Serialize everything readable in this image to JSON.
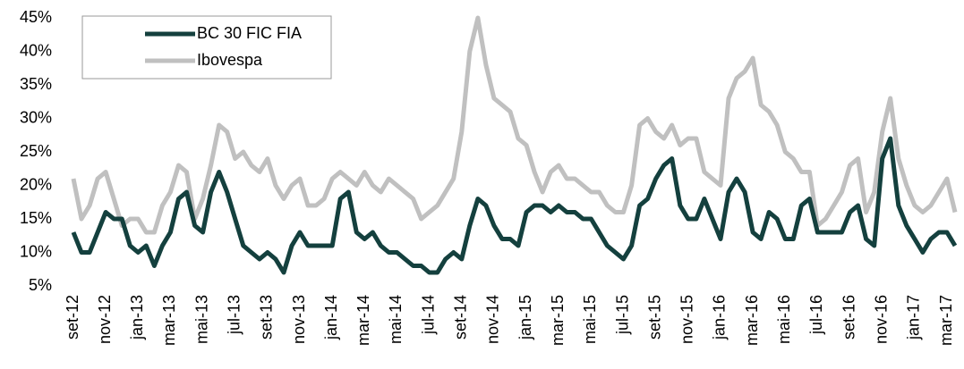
{
  "chart_data": {
    "type": "line",
    "categories": [
      "set-12",
      null,
      null,
      null,
      "nov-12",
      null,
      null,
      null,
      "jan-13",
      null,
      null,
      null,
      "mar-13",
      null,
      null,
      null,
      "mai-13",
      null,
      null,
      null,
      "jul-13",
      null,
      null,
      null,
      "set-13",
      null,
      null,
      null,
      "nov-13",
      null,
      null,
      null,
      "jan-14",
      null,
      null,
      null,
      "mar-14",
      null,
      null,
      null,
      "mai-14",
      null,
      null,
      null,
      "jul-14",
      null,
      null,
      null,
      "set-14",
      null,
      null,
      null,
      "nov-14",
      null,
      null,
      null,
      "jan-15",
      null,
      null,
      null,
      "mar-15",
      null,
      null,
      null,
      "mai-15",
      null,
      null,
      null,
      "jul-15",
      null,
      null,
      null,
      "set-15",
      null,
      null,
      null,
      "nov-15",
      null,
      null,
      null,
      "jan-16",
      null,
      null,
      null,
      "mar-16",
      null,
      null,
      null,
      "mai-16",
      null,
      null,
      null,
      "jul-16",
      null,
      null,
      null,
      "set-16",
      null,
      null,
      null,
      "nov-16",
      null,
      null,
      null,
      "jan-17",
      null,
      null,
      null,
      "mar-17",
      null
    ],
    "series": [
      {
        "name": "BC 30 FIC FIA",
        "color": "#14403e",
        "values": [
          13,
          10,
          10,
          13,
          16,
          15,
          15,
          11,
          10,
          11,
          8,
          11,
          13,
          18,
          19,
          14,
          13,
          19,
          22,
          19,
          15,
          11,
          10,
          9,
          10,
          9,
          7,
          11,
          13,
          11,
          11,
          11,
          11,
          18,
          19,
          13,
          12,
          13,
          11,
          10,
          10,
          9,
          8,
          8,
          7,
          7,
          9,
          10,
          9,
          14,
          18,
          17,
          14,
          12,
          12,
          11,
          16,
          17,
          17,
          16,
          17,
          16,
          16,
          15,
          15,
          13,
          11,
          10,
          9,
          11,
          17,
          18,
          21,
          23,
          24,
          17,
          15,
          15,
          18,
          15,
          12,
          19,
          21,
          19,
          13,
          12,
          16,
          15,
          12,
          12,
          17,
          18,
          13,
          13,
          13,
          13,
          16,
          17,
          12,
          11,
          24,
          27,
          17,
          14,
          12,
          10,
          12,
          13,
          13,
          11
        ]
      },
      {
        "name": "Ibovespa",
        "color": "#c0c0c0",
        "values": [
          21,
          15,
          17,
          21,
          22,
          18,
          14,
          15,
          15,
          13,
          13,
          17,
          19,
          23,
          22,
          15,
          18,
          23,
          29,
          28,
          24,
          25,
          23,
          22,
          24,
          20,
          18,
          20,
          21,
          17,
          17,
          18,
          21,
          22,
          21,
          20,
          22,
          20,
          19,
          21,
          20,
          19,
          18,
          15,
          16,
          17,
          19,
          21,
          28,
          40,
          45,
          38,
          33,
          32,
          31,
          27,
          26,
          22,
          19,
          22,
          23,
          21,
          21,
          20,
          19,
          19,
          17,
          16,
          16,
          20,
          29,
          30,
          28,
          27,
          29,
          26,
          27,
          27,
          22,
          21,
          20,
          33,
          36,
          37,
          39,
          32,
          31,
          29,
          25,
          24,
          22,
          22,
          14,
          15,
          17,
          19,
          23,
          24,
          16,
          19,
          28,
          33,
          24,
          20,
          17,
          16,
          17,
          19,
          21,
          16
        ]
      }
    ],
    "ylim": [
      5,
      45
    ],
    "yticks": [
      {
        "value": 5,
        "label": "5%"
      },
      {
        "value": 10,
        "label": "10%"
      },
      {
        "value": 15,
        "label": "15%"
      },
      {
        "value": 20,
        "label": "20%"
      },
      {
        "value": 25,
        "label": "25%"
      },
      {
        "value": 30,
        "label": "30%"
      },
      {
        "value": 35,
        "label": "35%"
      },
      {
        "value": 40,
        "label": "40%"
      },
      {
        "value": 45,
        "label": "45%"
      }
    ],
    "legend": "upper left"
  }
}
